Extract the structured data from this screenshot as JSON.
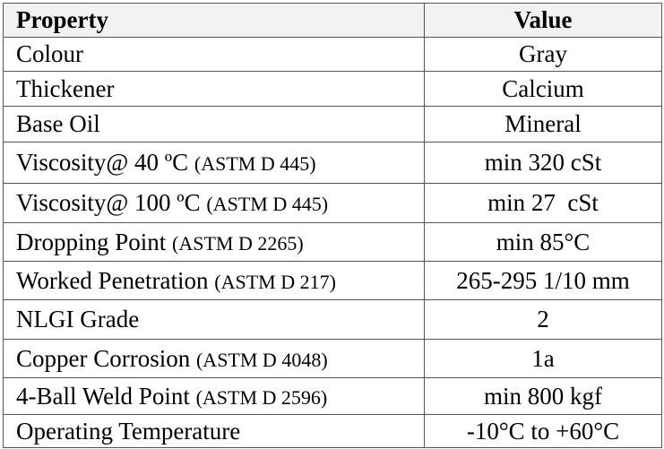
{
  "table": {
    "header": [
      "Property",
      "Value"
    ],
    "rows": [
      {
        "property": "Colour",
        "value": "Gray"
      },
      {
        "property": "Thickener",
        "value": "Calcium"
      },
      {
        "property": "Base Oil",
        "value": "Mineral"
      },
      {
        "property": "Viscosity@ 40 ºC",
        "standard": "(ASTM D 445)",
        "value": "min 320 cSt"
      },
      {
        "property": "Viscosity@ 100 ºC",
        "standard": "(ASTM D 445)",
        "value": "min 27  cSt"
      },
      {
        "property": "Dropping Point",
        "standard": "(ASTM D 2265)",
        "value": "min 85°C"
      },
      {
        "property": "Worked Penetration",
        "standard": "(ASTM D 217)",
        "value": "265-295 1/10 mm"
      },
      {
        "property": "NLGI Grade",
        "value": "2"
      },
      {
        "property": "Copper Corrosion",
        "standard": "(ASTM D 4048)",
        "value": "1a"
      },
      {
        "property": "4-Ball Weld Point",
        "standard": "(ASTM D 2596)",
        "value": "min 800 kgf"
      },
      {
        "property": "Operating Temperature",
        "value": "-10°C to +60°C"
      }
    ]
  }
}
